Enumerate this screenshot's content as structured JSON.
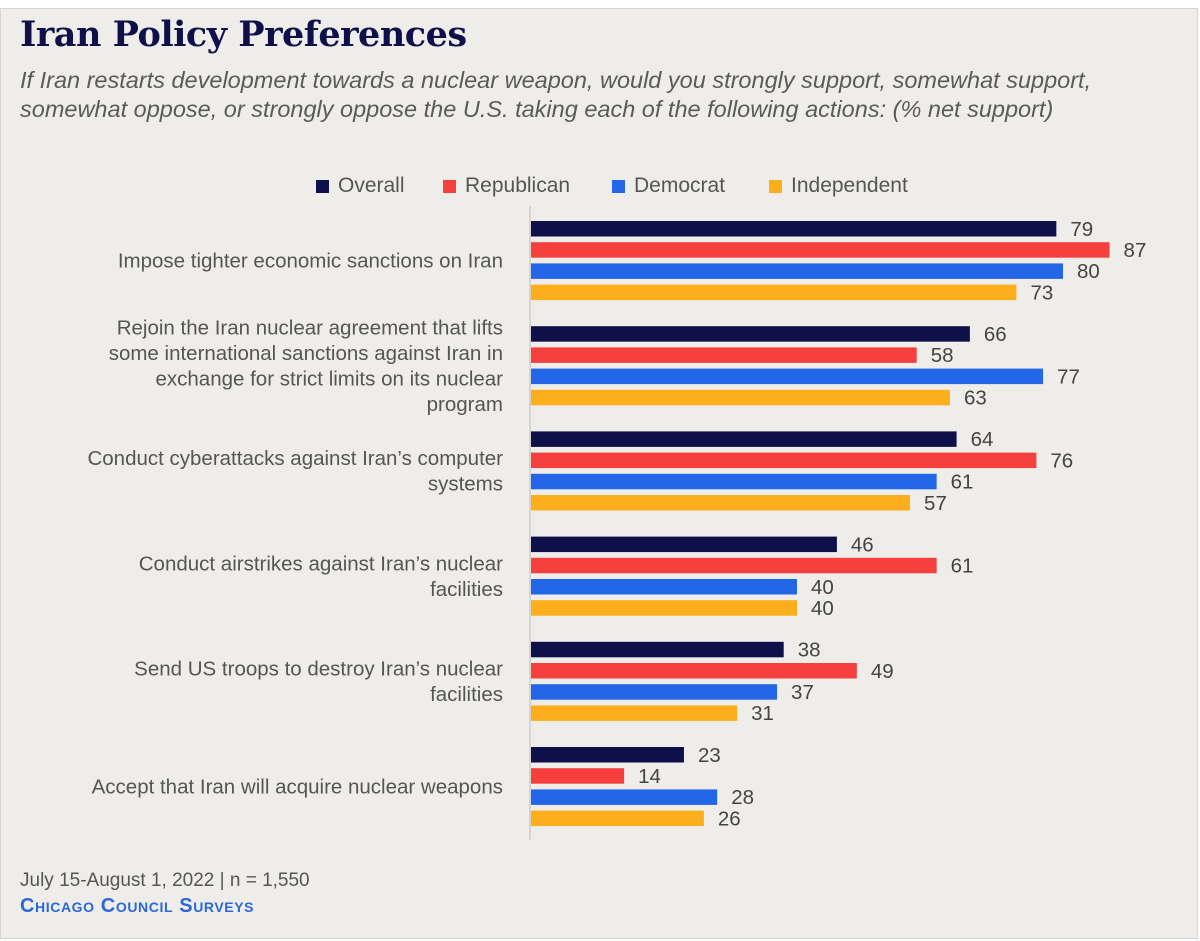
{
  "title": "Iran Policy Preferences",
  "subtitle": "If Iran restarts development towards a nuclear weapon, would you strongly support, somewhat support, somewhat oppose, or strongly oppose the U.S. taking each of the following actions: (% net support)",
  "footer": {
    "date_sample": "July 15-August 1, 2022 | n = 1,550",
    "source": "Chicago Council Surveys"
  },
  "colors": {
    "background": "#efedea",
    "title": "#0f0f4a",
    "axis": "#bfbcb7"
  },
  "chart_data": {
    "type": "bar",
    "orientation": "horizontal",
    "title": "Iran Policy Preferences",
    "xlim": [
      0,
      100
    ],
    "grid": false,
    "legend_position": "top",
    "categories": [
      "Impose tighter economic sanctions on Iran",
      "Rejoin the Iran nuclear agreement that lifts some international sanctions against Iran in exchange for strict limits on its nuclear program",
      "Conduct cyberattacks against Iran’s computer systems",
      "Conduct airstrikes against Iran’s nuclear facilities",
      "Send US troops to destroy Iran’s nuclear facilities",
      "Accept that Iran will acquire nuclear weapons"
    ],
    "category_lines": [
      [
        "Impose tighter economic sanctions on Iran"
      ],
      [
        "Rejoin the Iran nuclear agreement that lifts",
        "some international sanctions against Iran in",
        "exchange for strict limits on its nuclear",
        "program"
      ],
      [
        "Conduct cyberattacks against Iran’s computer",
        "systems"
      ],
      [
        "Conduct airstrikes against Iran’s nuclear",
        "facilities"
      ],
      [
        "Send US troops to destroy Iran’s nuclear",
        "facilities"
      ],
      [
        "Accept that Iran will acquire nuclear weapons"
      ]
    ],
    "series": [
      {
        "name": "Overall",
        "color": "#0f0f4a",
        "values": [
          79,
          66,
          64,
          46,
          38,
          23
        ]
      },
      {
        "name": "Republican",
        "color": "#f5403e",
        "values": [
          87,
          58,
          76,
          61,
          49,
          14
        ]
      },
      {
        "name": "Democrat",
        "color": "#2367e8",
        "values": [
          80,
          77,
          61,
          40,
          37,
          28
        ]
      },
      {
        "name": "Independent",
        "color": "#fdae1c",
        "values": [
          73,
          63,
          57,
          40,
          31,
          26
        ]
      }
    ]
  }
}
